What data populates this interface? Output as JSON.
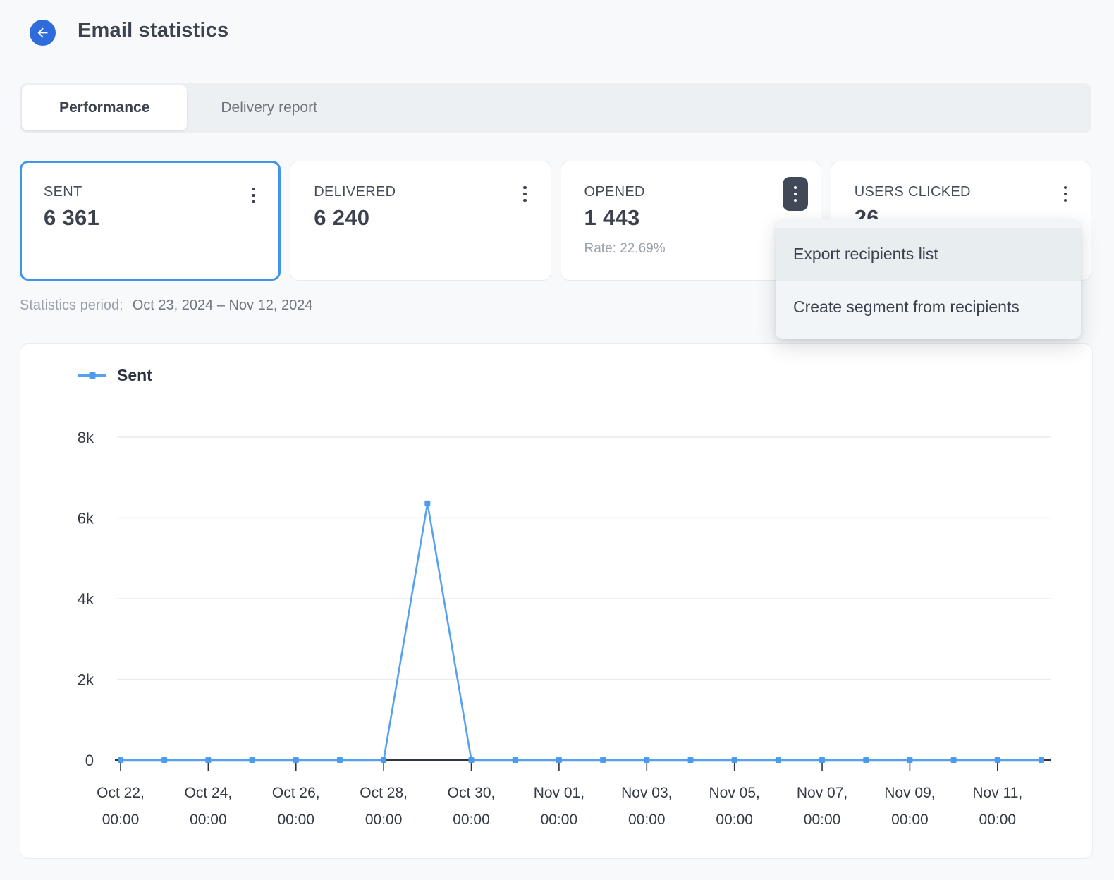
{
  "header": {
    "title": "Email statistics"
  },
  "tabs": [
    {
      "label": "Performance",
      "active": true
    },
    {
      "label": "Delivery report",
      "active": false
    }
  ],
  "cards": [
    {
      "label": "SENT",
      "value": "6 361",
      "selected": true
    },
    {
      "label": "DELIVERED",
      "value": "6 240"
    },
    {
      "label": "OPENED",
      "value": "1 443",
      "rate": "Rate: 22.69%",
      "menu_open": true
    },
    {
      "label": "USERS CLICKED",
      "value": "26"
    }
  ],
  "menu": {
    "items": [
      {
        "label": "Export recipients list",
        "highlighted": true
      },
      {
        "label": "Create segment from recipients",
        "highlighted": false
      }
    ]
  },
  "period": {
    "label": "Statistics period:",
    "value": "Oct 23, 2024 – Nov 12, 2024"
  },
  "chart_data": {
    "type": "line",
    "title": "",
    "legend_position": "top-left",
    "grid": true,
    "ylim": [
      0,
      8000
    ],
    "y_ticks": [
      {
        "label": "8k",
        "value": 8000
      },
      {
        "label": "6k",
        "value": 6000
      },
      {
        "label": "4k",
        "value": 4000
      },
      {
        "label": "2k",
        "value": 2000
      },
      {
        "label": "0",
        "value": 0
      }
    ],
    "x": [
      "Oct 22, 00:00",
      "Oct 23, 00:00",
      "Oct 24, 00:00",
      "Oct 25, 00:00",
      "Oct 26, 00:00",
      "Oct 27, 00:00",
      "Oct 28, 00:00",
      "Oct 29, 00:00",
      "Oct 30, 00:00",
      "Oct 31, 00:00",
      "Nov 01, 00:00",
      "Nov 02, 00:00",
      "Nov 03, 00:00",
      "Nov 04, 00:00",
      "Nov 05, 00:00",
      "Nov 06, 00:00",
      "Nov 07, 00:00",
      "Nov 08, 00:00",
      "Nov 09, 00:00",
      "Nov 10, 00:00",
      "Nov 11, 00:00",
      "Nov 12, 00:00"
    ],
    "x_axis_ticks": [
      {
        "index": 0,
        "line1": "Oct 22,",
        "line2": "00:00"
      },
      {
        "index": 2,
        "line1": "Oct 24,",
        "line2": "00:00"
      },
      {
        "index": 4,
        "line1": "Oct 26,",
        "line2": "00:00"
      },
      {
        "index": 6,
        "line1": "Oct 28,",
        "line2": "00:00"
      },
      {
        "index": 8,
        "line1": "Oct 30,",
        "line2": "00:00"
      },
      {
        "index": 10,
        "line1": "Nov 01,",
        "line2": "00:00"
      },
      {
        "index": 12,
        "line1": "Nov 03,",
        "line2": "00:00"
      },
      {
        "index": 14,
        "line1": "Nov 05,",
        "line2": "00:00"
      },
      {
        "index": 16,
        "line1": "Nov 07,",
        "line2": "00:00"
      },
      {
        "index": 18,
        "line1": "Nov 09,",
        "line2": "00:00"
      },
      {
        "index": 20,
        "line1": "Nov 11,",
        "line2": "00:00"
      }
    ],
    "series": [
      {
        "name": "Sent",
        "values": [
          0,
          0,
          0,
          0,
          0,
          0,
          0,
          6361,
          0,
          0,
          0,
          0,
          0,
          0,
          0,
          0,
          0,
          0,
          0,
          0,
          0,
          0
        ]
      }
    ]
  },
  "colors": {
    "page-bg": "#f7f9fa",
    "back-blue": "#2d6cda",
    "selected-border": "#4094ea",
    "chart-line": "#57a2f0",
    "chart-marker": "#4c9bee",
    "kebab-active-bg": "#414956"
  }
}
